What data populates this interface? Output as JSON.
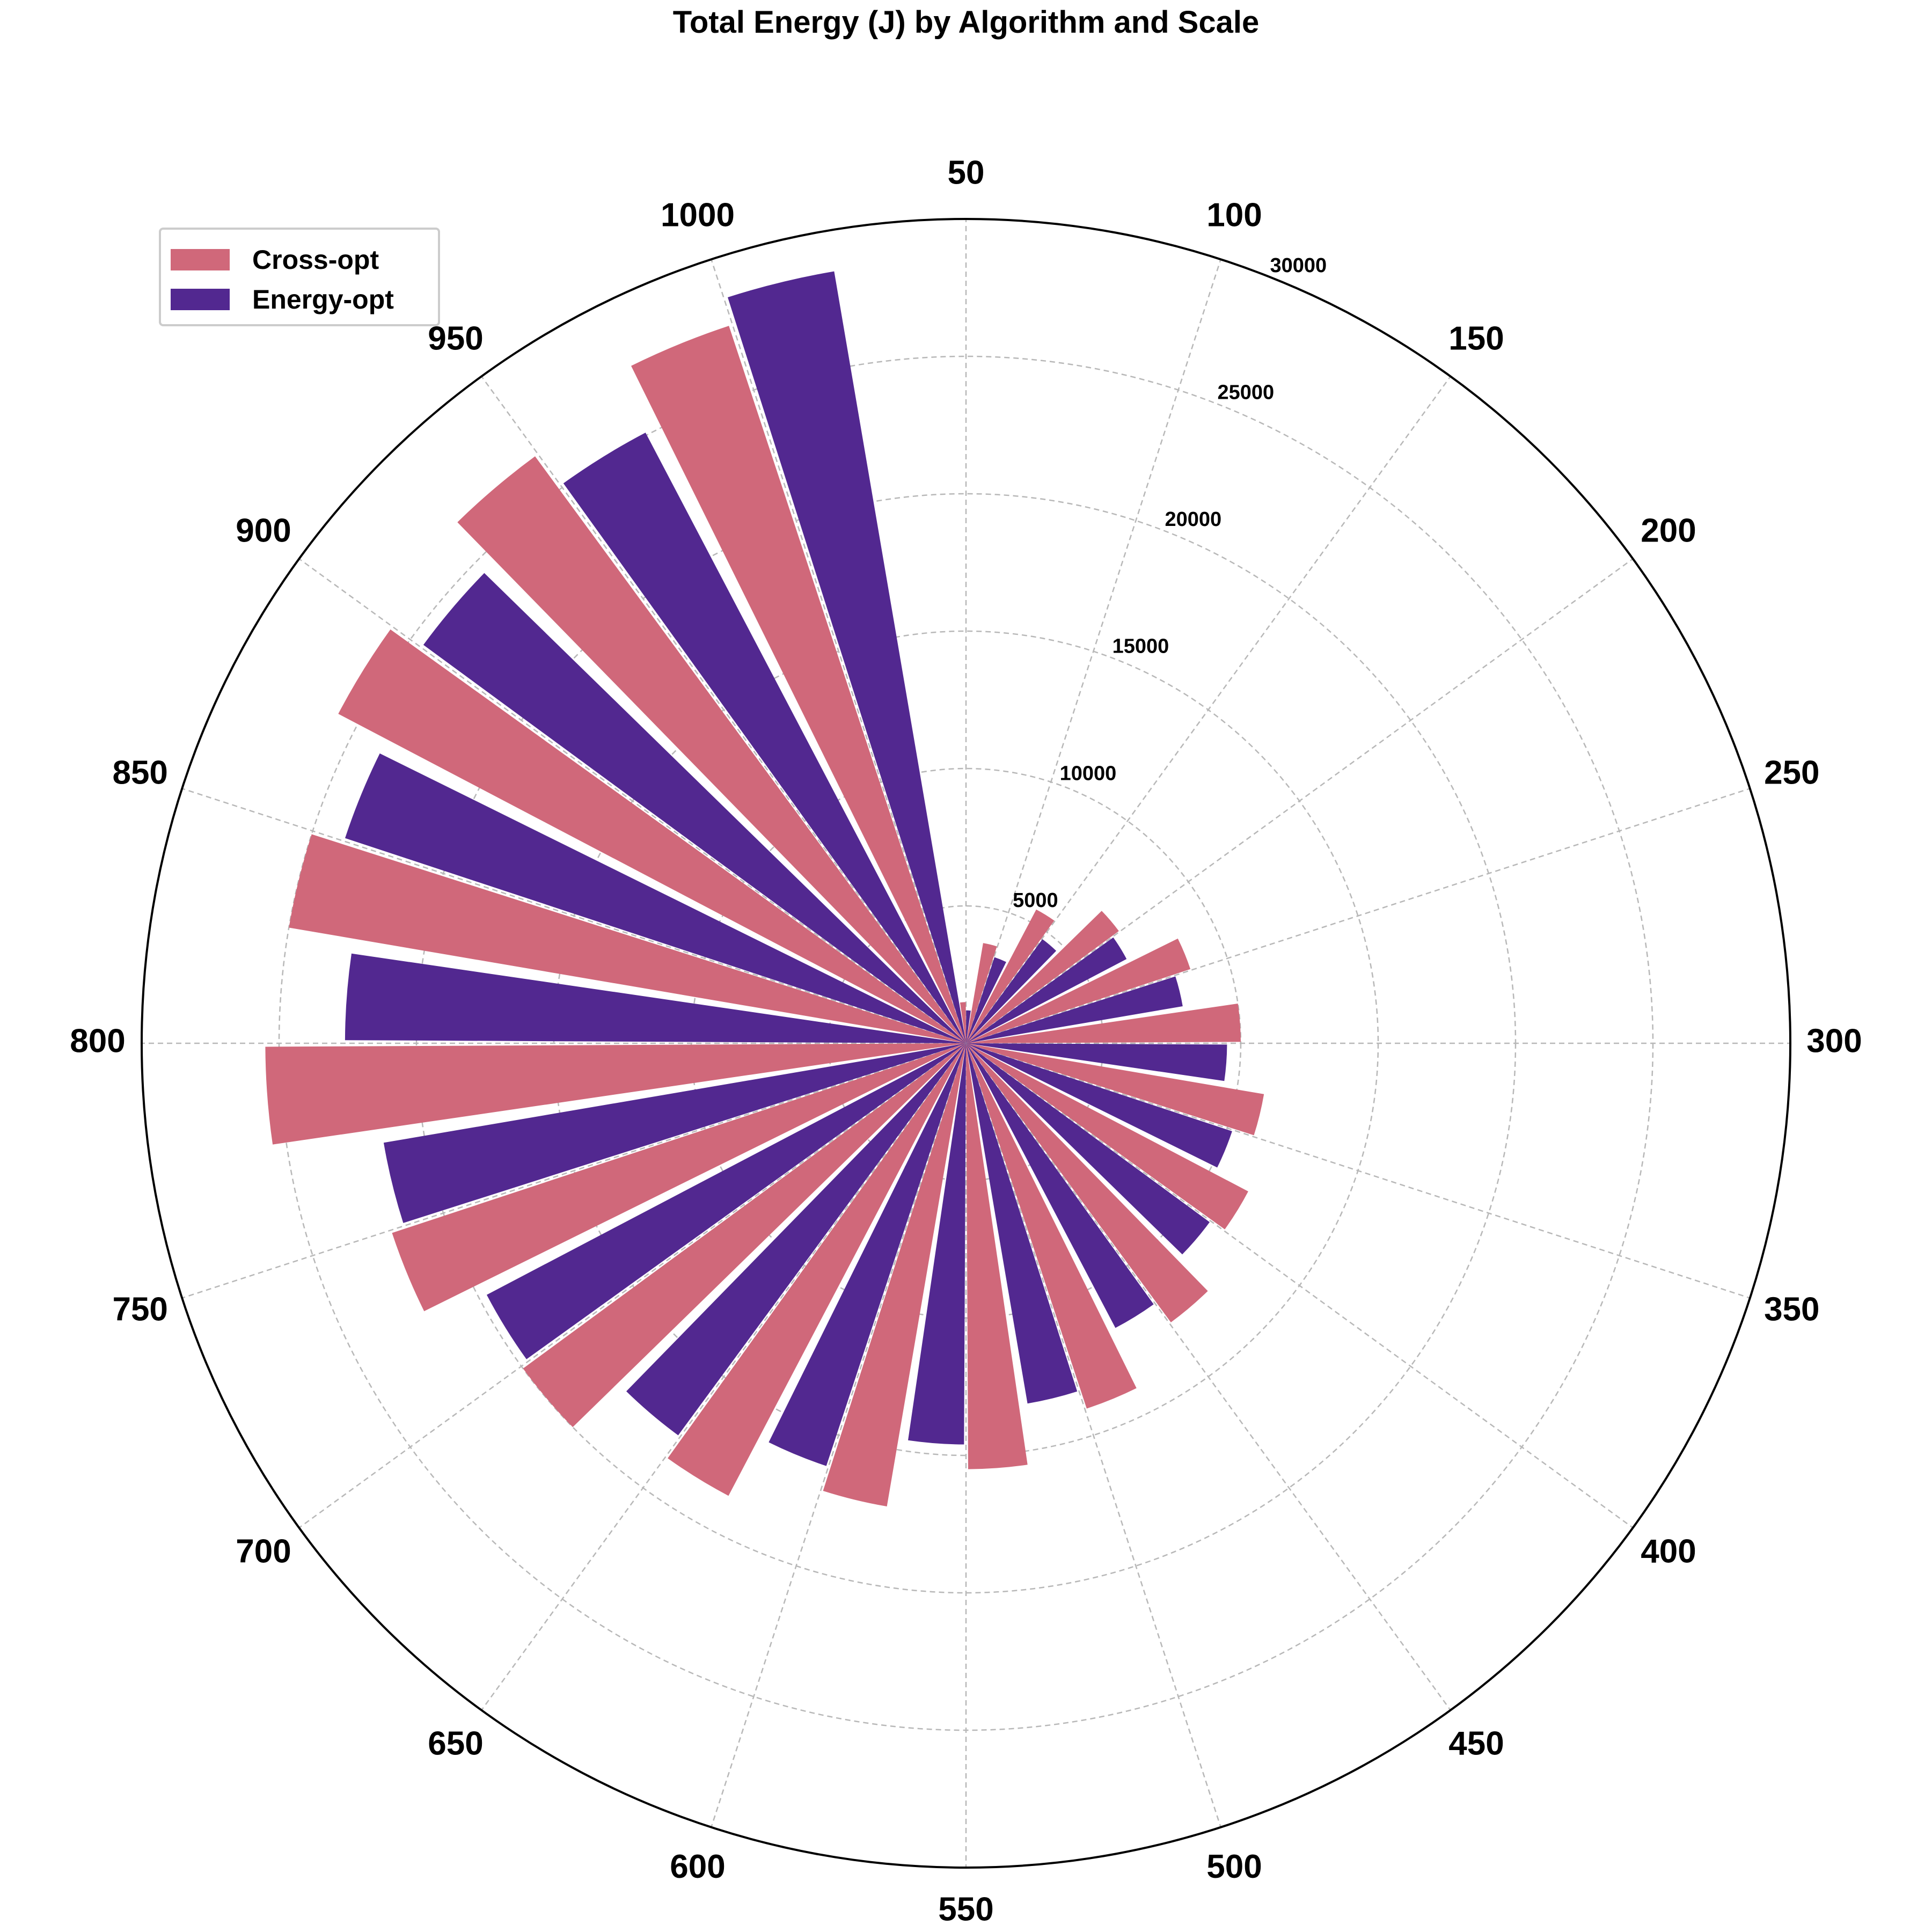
{
  "chart_data": {
    "type": "bar",
    "subtype": "polar",
    "title": "Total Energy (J) by Algorithm and Scale",
    "categories": [
      "50",
      "100",
      "150",
      "200",
      "250",
      "300",
      "350",
      "400",
      "450",
      "500",
      "550",
      "600",
      "650",
      "700",
      "750",
      "800",
      "850",
      "900",
      "950",
      "1000"
    ],
    "series": [
      {
        "name": "Cross-opt",
        "color": "#d0687a",
        "values": [
          1500,
          3700,
          5500,
          6900,
          8600,
          10000,
          11000,
          11600,
          12600,
          14000,
          15500,
          17100,
          18600,
          20000,
          22000,
          25500,
          25000,
          25800,
          26500,
          27500
        ]
      },
      {
        "name": "Energy-opt",
        "color": "#522890",
        "values": [
          1200,
          3300,
          4700,
          6600,
          8000,
          9500,
          10200,
          11000,
          11700,
          13300,
          14600,
          16200,
          17700,
          19700,
          21500,
          22600,
          23800,
          24500,
          25100,
          28500
        ]
      }
    ],
    "radial_ticks": [
      5000,
      10000,
      15000,
      20000,
      25000,
      30000
    ],
    "rlim": [
      0,
      30000
    ],
    "grid": true,
    "legend_position": "top-left"
  }
}
